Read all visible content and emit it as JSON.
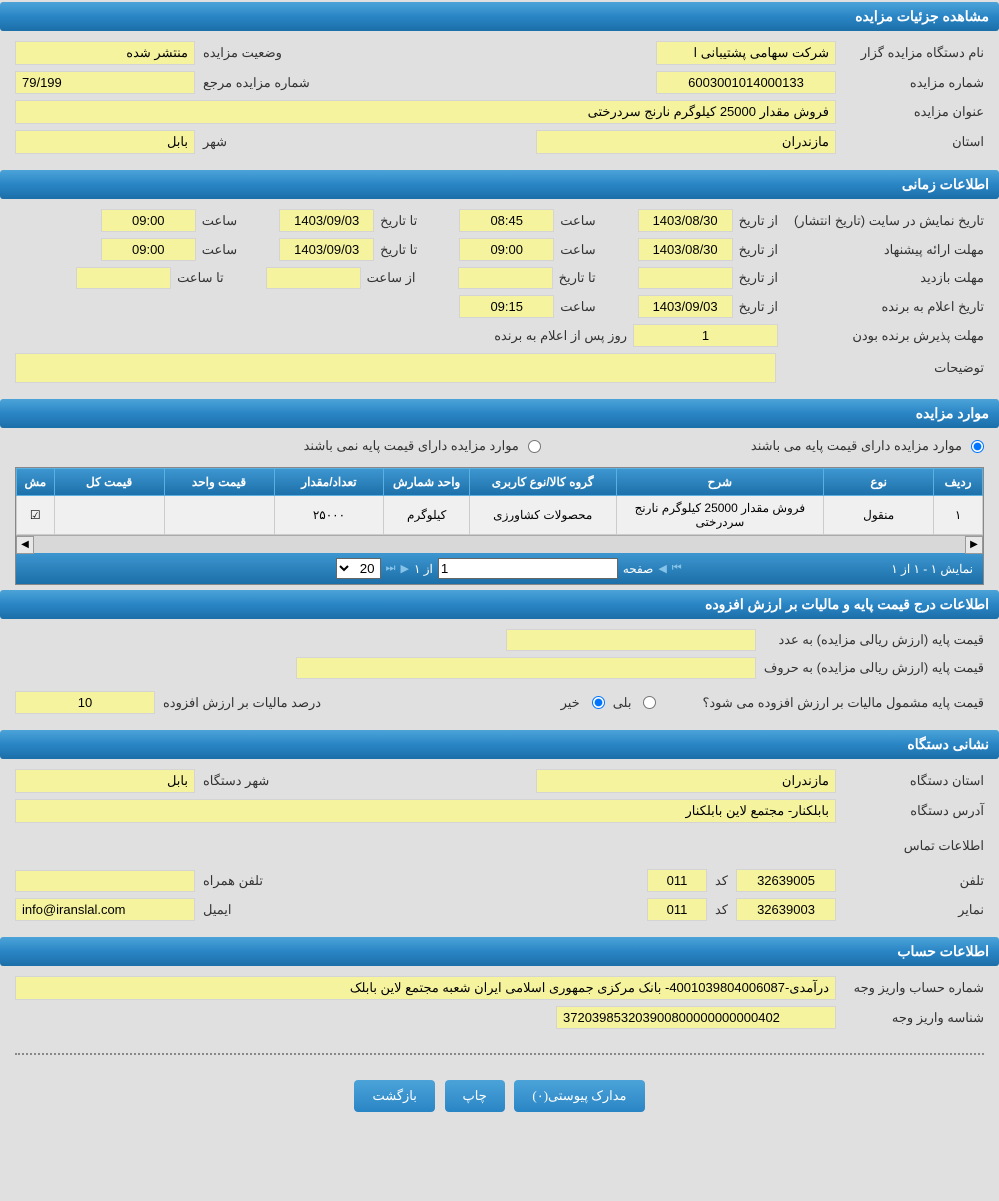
{
  "sections": {
    "auction_details": "مشاهده جزئیات مزایده",
    "time_info": "اطلاعات زمانی",
    "auction_items": "موارد مزایده",
    "base_price_info": "اطلاعات درج قیمت پایه و مالیات بر ارزش افزوده",
    "org_address": "نشانی دستگاه",
    "account_info": "اطلاعات حساب"
  },
  "details": {
    "org_name_label": "نام دستگاه مزایده گزار",
    "org_name": "شرکت سهامی پشتیبانی ا",
    "status_label": "وضعیت مزایده",
    "status": "منتشر شده",
    "auction_no_label": "شماره مزایده",
    "auction_no": "6003001014000133",
    "ref_no_label": "شماره مزایده مرجع",
    "ref_no": "79/199",
    "title_label": "عنوان مزایده",
    "title": "فروش مقدار 25000 کیلوگرم نارنج سردرختی",
    "province_label": "استان",
    "province": "مازندران",
    "city_label": "شهر",
    "city": "بابل"
  },
  "time": {
    "publish_label": "تاریخ نمایش در سایت (تاریخ انتشار)",
    "from_date_label": "از تاریخ",
    "to_date_label": "تا تاریخ",
    "time_label": "ساعت",
    "from_time_label": "از ساعت",
    "to_time_label": "تا ساعت",
    "publish_from_date": "1403/08/30",
    "publish_from_time": "08:45",
    "publish_to_date": "1403/09/03",
    "publish_to_time": "09:00",
    "proposal_label": "مهلت ارائه پیشنهاد",
    "proposal_from_date": "1403/08/30",
    "proposal_from_time": "09:00",
    "proposal_to_date": "1403/09/03",
    "proposal_to_time": "09:00",
    "visit_label": "مهلت بازدید",
    "visit_from_date": "",
    "visit_to_date": "",
    "visit_from_time": "",
    "visit_to_time": "",
    "winner_announce_label": "تاریخ اعلام به برنده",
    "winner_announce_date": "1403/09/03",
    "winner_announce_time": "09:15",
    "winner_accept_label": "مهلت پذیرش برنده بودن",
    "winner_accept_days": "1",
    "winner_accept_suffix": "روز پس از اعلام به برنده",
    "notes_label": "توضیحات",
    "notes": ""
  },
  "items": {
    "radio_has_base": "موارد مزایده دارای قیمت پایه می باشند",
    "radio_no_base": "موارد مزایده دارای قیمت پایه نمی باشند",
    "columns": {
      "row": "ردیف",
      "type": "نوع",
      "desc": "شرح",
      "group": "گروه کالا/نوع کاربری",
      "unit": "واحد شمارش",
      "qty": "تعداد/مقدار",
      "unit_price": "قیمت واحد",
      "total_price": "قیمت کل",
      "doc": "مش"
    },
    "rows": [
      {
        "row": "۱",
        "type": "منقول",
        "desc": "فروش مقدار 25000 کیلوگرم نارنج سردرختی",
        "group": "محصولات کشاورزی",
        "unit": "کیلوگرم",
        "qty": "۲۵۰۰۰",
        "unit_price": "",
        "total_price": "",
        "doc": "☑"
      }
    ],
    "pager": {
      "display": "نمایش ۱ - ۱ از ۱",
      "page_label": "صفحه",
      "page_value": "1",
      "of_label": "از ۱",
      "per_page": "20"
    }
  },
  "price": {
    "base_num_label": "قیمت پایه (ارزش ریالی مزایده) به عدد",
    "base_num": "",
    "base_text_label": "قیمت پایه (ارزش ریالی مزایده) به حروف",
    "base_text": "",
    "vat_question": "قیمت پایه مشمول مالیات بر ارزش افزوده می شود؟",
    "yes": "بلی",
    "no": "خیر",
    "vat_percent_label": "درصد مالیات بر ارزش افزوده",
    "vat_percent": "10"
  },
  "address": {
    "province_label": "استان دستگاه",
    "province": "مازندران",
    "city_label": "شهر دستگاه",
    "city": "بابل",
    "address_label": "آدرس دستگاه",
    "address": "بابلکنار- مجتمع لاین بابلکنار",
    "contact_label": "اطلاعات تماس",
    "phone_label": "تلفن",
    "phone": "32639005",
    "code_label": "کد",
    "phone_code": "011",
    "mobile_label": "تلفن همراه",
    "mobile": "",
    "fax_label": "نمایر",
    "fax": "32639003",
    "fax_code": "011",
    "email_label": "ایمیل",
    "email": "info@iranslal.com"
  },
  "account": {
    "deposit_no_label": "شماره حساب واریز وجه",
    "deposit_no": "درآمدی-4001039804006087- بانک مرکزی جمهوری اسلامی ایران شعبه مجتمع لاین بابلک",
    "deposit_id_label": "شناسه واریز وجه",
    "deposit_id": "372039853203900800000000000402"
  },
  "buttons": {
    "attachments": "مدارک پیوستی(۰)",
    "print": "چاپ",
    "back": "بازگشت"
  }
}
